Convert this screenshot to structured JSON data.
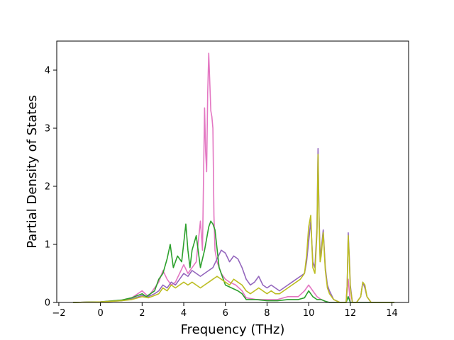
{
  "chart_data": {
    "type": "line",
    "title": "",
    "xlabel": "Frequency (THz)",
    "ylabel": "Partial Density of States",
    "xlim": [
      -2.1,
      14.8
    ],
    "ylim": [
      0,
      4.5
    ],
    "xticks": [
      -2,
      0,
      2,
      4,
      6,
      8,
      10,
      12,
      14
    ],
    "yticks": [
      0,
      1,
      2,
      3,
      4
    ],
    "grid": false,
    "legend": "none",
    "series": [
      {
        "color": "#e377c2",
        "x": [
          -1.3,
          0,
          1.0,
          1.5,
          2.0,
          2.3,
          2.6,
          2.8,
          3.0,
          3.2,
          3.4,
          3.6,
          3.8,
          4.0,
          4.2,
          4.4,
          4.6,
          4.8,
          4.9,
          5.0,
          5.05,
          5.1,
          5.15,
          5.2,
          5.25,
          5.3,
          5.35,
          5.4,
          5.45,
          5.5,
          5.6,
          5.8,
          6.0,
          6.2,
          6.5,
          6.8,
          7.0,
          7.5,
          8.0,
          8.5,
          9.0,
          9.5,
          9.8,
          10.0,
          10.2,
          10.4,
          10.6,
          10.8,
          11.0,
          11.5,
          11.8,
          11.9,
          12.0,
          12.2,
          12.4,
          12.6,
          12.8,
          13.0,
          14.1
        ],
        "y": [
          0,
          0.01,
          0.04,
          0.08,
          0.2,
          0.1,
          0.25,
          0.35,
          0.55,
          0.4,
          0.3,
          0.35,
          0.5,
          0.65,
          0.5,
          0.6,
          0.7,
          1.4,
          0.9,
          3.35,
          2.6,
          2.25,
          3.6,
          4.29,
          3.8,
          3.3,
          3.2,
          3.0,
          1.5,
          0.9,
          0.7,
          0.5,
          0.4,
          0.35,
          0.3,
          0.2,
          0.08,
          0.05,
          0.05,
          0.05,
          0.1,
          0.1,
          0.2,
          0.3,
          0.2,
          0.1,
          0.05,
          0.02,
          0,
          0,
          0,
          0.4,
          0,
          0,
          0,
          0,
          0,
          0,
          0
        ]
      },
      {
        "color": "#9467bd",
        "x": [
          -1.3,
          0,
          1.0,
          1.5,
          2.0,
          2.3,
          2.6,
          2.8,
          3.0,
          3.2,
          3.4,
          3.6,
          3.8,
          4.0,
          4.2,
          4.4,
          4.6,
          4.8,
          5.0,
          5.2,
          5.4,
          5.6,
          5.8,
          6.0,
          6.2,
          6.4,
          6.6,
          6.8,
          7.0,
          7.2,
          7.4,
          7.6,
          7.8,
          8.0,
          8.2,
          8.4,
          8.6,
          8.8,
          9.0,
          9.2,
          9.4,
          9.6,
          9.8,
          9.9,
          10.0,
          10.1,
          10.2,
          10.3,
          10.4,
          10.45,
          10.5,
          10.55,
          10.6,
          10.7,
          10.8,
          10.9,
          11.0,
          11.2,
          11.5,
          11.8,
          11.85,
          11.9,
          11.95,
          12.0,
          12.1,
          12.3,
          12.5,
          12.6,
          12.7,
          12.8,
          13.0,
          14.1
        ],
        "y": [
          0,
          0.01,
          0.03,
          0.06,
          0.12,
          0.1,
          0.15,
          0.2,
          0.3,
          0.25,
          0.35,
          0.3,
          0.4,
          0.5,
          0.45,
          0.55,
          0.5,
          0.45,
          0.5,
          0.55,
          0.6,
          0.75,
          0.9,
          0.85,
          0.7,
          0.8,
          0.75,
          0.6,
          0.4,
          0.3,
          0.35,
          0.45,
          0.3,
          0.25,
          0.3,
          0.25,
          0.2,
          0.25,
          0.3,
          0.35,
          0.4,
          0.45,
          0.5,
          0.7,
          1.05,
          1.4,
          0.7,
          0.6,
          1.3,
          2.65,
          1.5,
          0.8,
          0.9,
          1.25,
          0.6,
          0.3,
          0.2,
          0.05,
          0,
          0,
          0.3,
          1.2,
          0.8,
          0.3,
          0,
          0,
          0.1,
          0.35,
          0.25,
          0.1,
          0,
          0
        ]
      },
      {
        "color": "#2ca02c",
        "x": [
          -1.3,
          0,
          1.0,
          1.5,
          2.0,
          2.2,
          2.4,
          2.6,
          2.8,
          3.0,
          3.2,
          3.35,
          3.5,
          3.7,
          3.9,
          4.1,
          4.2,
          4.3,
          4.4,
          4.6,
          4.8,
          5.0,
          5.1,
          5.2,
          5.3,
          5.4,
          5.5,
          5.7,
          6.0,
          6.3,
          6.6,
          6.8,
          7.0,
          7.5,
          8.0,
          8.5,
          9.0,
          9.5,
          9.8,
          10.0,
          10.2,
          10.4,
          10.6,
          10.8,
          11.0,
          11.5,
          11.8,
          11.9,
          12.0,
          12.5,
          14.1
        ],
        "y": [
          0,
          0.01,
          0.04,
          0.08,
          0.15,
          0.1,
          0.15,
          0.2,
          0.4,
          0.5,
          0.75,
          1.0,
          0.6,
          0.8,
          0.7,
          1.35,
          0.9,
          0.6,
          0.9,
          1.15,
          0.6,
          0.9,
          1.1,
          1.3,
          1.4,
          1.35,
          1.25,
          0.6,
          0.3,
          0.25,
          0.2,
          0.15,
          0.05,
          0.05,
          0.03,
          0.03,
          0.05,
          0.05,
          0.08,
          0.2,
          0.1,
          0.05,
          0.05,
          0.02,
          0,
          0,
          0,
          0.1,
          0,
          0,
          0
        ]
      },
      {
        "color": "#bcbd22",
        "x": [
          -1.3,
          0,
          1.0,
          1.5,
          2.0,
          2.3,
          2.6,
          2.8,
          3.0,
          3.2,
          3.4,
          3.6,
          3.8,
          4.0,
          4.2,
          4.4,
          4.6,
          4.8,
          5.0,
          5.2,
          5.4,
          5.6,
          5.8,
          6.0,
          6.2,
          6.4,
          6.6,
          6.8,
          7.0,
          7.2,
          7.4,
          7.6,
          7.8,
          8.0,
          8.2,
          8.4,
          8.6,
          8.8,
          9.0,
          9.2,
          9.4,
          9.6,
          9.8,
          9.9,
          10.0,
          10.1,
          10.2,
          10.3,
          10.4,
          10.45,
          10.5,
          10.55,
          10.6,
          10.7,
          10.8,
          10.9,
          11.0,
          11.2,
          11.5,
          11.8,
          11.85,
          11.9,
          11.95,
          12.0,
          12.1,
          12.3,
          12.5,
          12.6,
          12.7,
          12.8,
          13.0,
          14.1
        ],
        "y": [
          0,
          0.01,
          0.03,
          0.05,
          0.1,
          0.08,
          0.12,
          0.15,
          0.25,
          0.2,
          0.3,
          0.25,
          0.3,
          0.35,
          0.3,
          0.35,
          0.3,
          0.25,
          0.3,
          0.35,
          0.4,
          0.45,
          0.4,
          0.35,
          0.3,
          0.4,
          0.35,
          0.3,
          0.2,
          0.15,
          0.2,
          0.25,
          0.2,
          0.15,
          0.2,
          0.15,
          0.15,
          0.2,
          0.25,
          0.3,
          0.35,
          0.4,
          0.5,
          0.8,
          1.3,
          1.5,
          0.6,
          0.5,
          1.2,
          2.55,
          1.4,
          0.7,
          0.8,
          1.2,
          0.55,
          0.25,
          0.15,
          0.05,
          0,
          0,
          0.3,
          1.15,
          0.75,
          0.25,
          0,
          0,
          0.1,
          0.35,
          0.3,
          0.1,
          0,
          0
        ]
      }
    ]
  }
}
